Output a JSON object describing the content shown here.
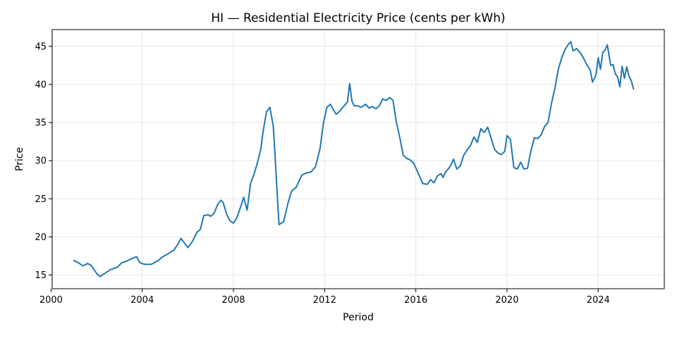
{
  "chart_data": {
    "type": "line",
    "title": "HI — Residential Electricity Price (cents per kWh)",
    "xlabel": "Period",
    "ylabel": "Price",
    "xlim": [
      2000.05,
      2026.9
    ],
    "ylim": [
      13.2,
      47.2
    ],
    "xticks": [
      2000,
      2004,
      2008,
      2012,
      2016,
      2020,
      2024
    ],
    "yticks": [
      15,
      20,
      25,
      30,
      35,
      40,
      45
    ],
    "grid": true,
    "legend": "none",
    "series": [
      {
        "color": "#1f77b4",
        "x": [
          2001.0,
          2001.2,
          2001.4,
          2001.6,
          2001.75,
          2002.0,
          2002.15,
          2002.4,
          2002.6,
          2002.9,
          2003.1,
          2003.3,
          2003.5,
          2003.75,
          2003.9,
          2004.1,
          2004.4,
          2004.7,
          2004.9,
          2005.15,
          2005.4,
          2005.55,
          2005.7,
          2006.0,
          2006.2,
          2006.4,
          2006.55,
          2006.7,
          2006.9,
          2007.0,
          2007.15,
          2007.3,
          2007.45,
          2007.55,
          2007.7,
          2007.85,
          2008.0,
          2008.15,
          2008.3,
          2008.45,
          2008.6,
          2008.75,
          2008.9,
          2009.05,
          2009.2,
          2009.3,
          2009.45,
          2009.6,
          2009.75,
          2010.0,
          2010.2,
          2010.4,
          2010.55,
          2010.75,
          2011.0,
          2011.2,
          2011.4,
          2011.6,
          2011.8,
          2011.95,
          2012.1,
          2012.25,
          2012.4,
          2012.5,
          2012.6,
          2012.8,
          2013.0,
          2013.1,
          2013.2,
          2013.3,
          2013.45,
          2013.6,
          2013.8,
          2013.95,
          2014.1,
          2014.25,
          2014.4,
          2014.55,
          2014.7,
          2014.85,
          2015.0,
          2015.15,
          2015.3,
          2015.45,
          2015.6,
          2015.75,
          2015.9,
          2016.1,
          2016.3,
          2016.5,
          2016.65,
          2016.8,
          2016.95,
          2017.1,
          2017.2,
          2017.3,
          2017.45,
          2017.55,
          2017.65,
          2017.8,
          2017.95,
          2018.1,
          2018.25,
          2018.4,
          2018.55,
          2018.7,
          2018.85,
          2019.0,
          2019.15,
          2019.3,
          2019.45,
          2019.6,
          2019.75,
          2019.9,
          2020.0,
          2020.15,
          2020.3,
          2020.45,
          2020.6,
          2020.75,
          2020.9,
          2021.05,
          2021.2,
          2021.35,
          2021.5,
          2021.65,
          2021.8,
          2021.95,
          2022.1,
          2022.25,
          2022.4,
          2022.55,
          2022.7,
          2022.8,
          2022.9,
          2023.05,
          2023.2,
          2023.35,
          2023.5,
          2023.65,
          2023.75,
          2023.9,
          2024.0,
          2024.1,
          2024.2,
          2024.3,
          2024.4,
          2024.55,
          2024.65,
          2024.75,
          2024.85,
          2024.95,
          2025.05,
          2025.15,
          2025.25,
          2025.35,
          2025.45,
          2025.55
        ],
        "values": [
          16.9,
          16.6,
          16.2,
          16.5,
          16.3,
          15.2,
          14.8,
          15.3,
          15.7,
          16.0,
          16.6,
          16.8,
          17.1,
          17.4,
          16.6,
          16.4,
          16.4,
          16.9,
          17.4,
          17.8,
          18.3,
          19.0,
          19.8,
          18.6,
          19.4,
          20.6,
          21.0,
          22.8,
          22.9,
          22.7,
          23.1,
          24.2,
          24.8,
          24.5,
          23.0,
          22.1,
          21.8,
          22.5,
          23.8,
          25.2,
          23.5,
          27.0,
          28.2,
          29.7,
          31.5,
          33.8,
          36.4,
          37.0,
          34.5,
          21.6,
          22.0,
          24.5,
          26.0,
          26.5,
          28.1,
          28.4,
          28.5,
          29.2,
          31.6,
          35.0,
          37.0,
          37.4,
          36.6,
          36.1,
          36.3,
          37.0,
          37.7,
          40.1,
          37.8,
          37.2,
          37.2,
          37.0,
          37.4,
          36.9,
          37.1,
          36.8,
          37.2,
          38.1,
          37.9,
          38.3,
          37.9,
          35.0,
          33.0,
          30.7,
          30.3,
          30.1,
          29.7,
          28.4,
          27.0,
          26.9,
          27.5,
          27.1,
          28.0,
          28.3,
          27.8,
          28.5,
          29.0,
          29.5,
          30.2,
          28.9,
          29.3,
          30.7,
          31.4,
          32.0,
          33.1,
          32.4,
          34.2,
          33.7,
          34.4,
          33.0,
          31.5,
          31.0,
          30.8,
          31.2,
          33.3,
          32.8,
          29.1,
          28.9,
          29.8,
          28.9,
          29.0,
          31.3,
          33.0,
          32.9,
          33.4,
          34.5,
          35.0,
          37.5,
          39.5,
          42.0,
          43.5,
          44.6,
          45.3,
          45.6,
          44.4,
          44.7,
          44.2,
          43.5,
          42.6,
          41.9,
          40.3,
          41.2,
          43.5,
          42.0,
          44.2,
          44.5,
          45.2,
          42.5,
          42.6,
          41.4,
          41.0,
          39.7,
          42.4,
          40.8,
          42.3,
          41.1,
          40.5,
          39.4
        ]
      }
    ]
  }
}
